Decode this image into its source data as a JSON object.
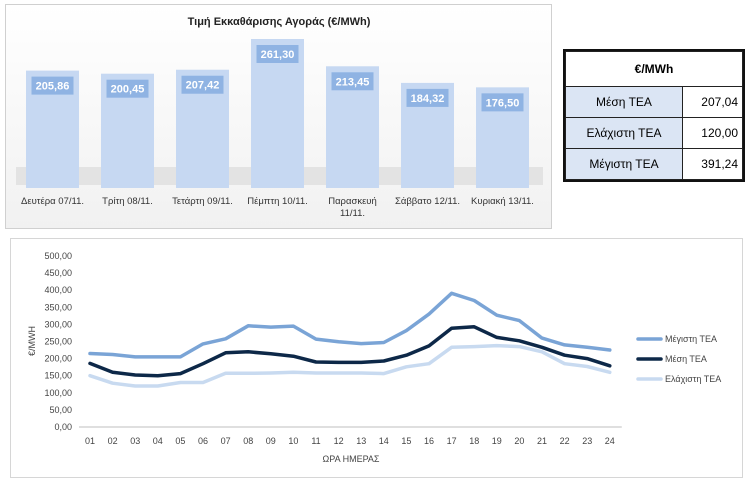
{
  "chart_data": [
    {
      "type": "bar",
      "title": "Τιμή Εκκαθάρισης Αγοράς (€/MWh)",
      "categories": [
        "Δευτέρα 07/11.",
        "Τρίτη 08/11.",
        "Τετάρτη 09/11.",
        "Πέμπτη 10/11.",
        "Παρασκευή 11/11.",
        "Σάββατο 12/11.",
        "Κυριακή 13/11."
      ],
      "category_lines": [
        [
          "Δευτέρα 07/11."
        ],
        [
          "Τρίτη 08/11."
        ],
        [
          "Τετάρτη 09/11."
        ],
        [
          "Πέμπτη 10/11."
        ],
        [
          "Παρασκευή",
          "11/11."
        ],
        [
          "Σάββατο 12/11."
        ],
        [
          "Κυριακή 13/11."
        ]
      ],
      "values": [
        205.86,
        200.45,
        207.42,
        261.3,
        213.45,
        184.32,
        176.5
      ],
      "value_labels": [
        "205,86",
        "200,45",
        "207,42",
        "261,30",
        "213,45",
        "184,32",
        "176,50"
      ],
      "colors": {
        "bar": "#c6d8f2",
        "label_bg": "#8fb3e3",
        "label_text": "#ffffff"
      }
    },
    {
      "type": "line",
      "xlabel": "ΩΡΑ ΗΜΕΡΑΣ",
      "ylabel": "€/MWH",
      "x": [
        "01",
        "02",
        "03",
        "04",
        "05",
        "06",
        "07",
        "08",
        "09",
        "10",
        "11",
        "12",
        "13",
        "14",
        "15",
        "16",
        "17",
        "18",
        "19",
        "20",
        "21",
        "22",
        "23",
        "24"
      ],
      "ylim": [
        0,
        500
      ],
      "yticks": [
        "0,00",
        "50,00",
        "100,00",
        "150,00",
        "200,00",
        "250,00",
        "300,00",
        "350,00",
        "400,00",
        "450,00",
        "500,00"
      ],
      "legend_position": "right",
      "series": [
        {
          "name": "Μέγιστη ΤΕΑ",
          "color": "#7aa4d6",
          "values": [
            215,
            212,
            205,
            205,
            205,
            243,
            258,
            296,
            292,
            295,
            257,
            249,
            244,
            247,
            282,
            330,
            391,
            370,
            327,
            311,
            260,
            240,
            233,
            225
          ]
        },
        {
          "name": "Μέση ΤΕΑ",
          "color": "#0d2848",
          "values": [
            186,
            160,
            152,
            150,
            156,
            185,
            217,
            220,
            214,
            207,
            190,
            189,
            189,
            193,
            210,
            237,
            289,
            293,
            262,
            252,
            233,
            210,
            200,
            179
          ]
        },
        {
          "name": "Ελάχιστη ΤΕΑ",
          "color": "#c8daf0",
          "values": [
            150,
            128,
            120,
            120,
            130,
            130,
            157,
            157,
            158,
            160,
            158,
            158,
            158,
            156,
            176,
            185,
            233,
            235,
            238,
            235,
            220,
            185,
            177,
            160
          ]
        }
      ]
    }
  ],
  "stats_table": {
    "header": "€/MWh",
    "rows": [
      {
        "label": "Μέση ΤΕΑ",
        "value": "207,04"
      },
      {
        "label": "Ελάχιστη ΤΕΑ",
        "value": "120,00"
      },
      {
        "label": "Μέγιστη ΤΕΑ",
        "value": "391,24"
      }
    ]
  }
}
